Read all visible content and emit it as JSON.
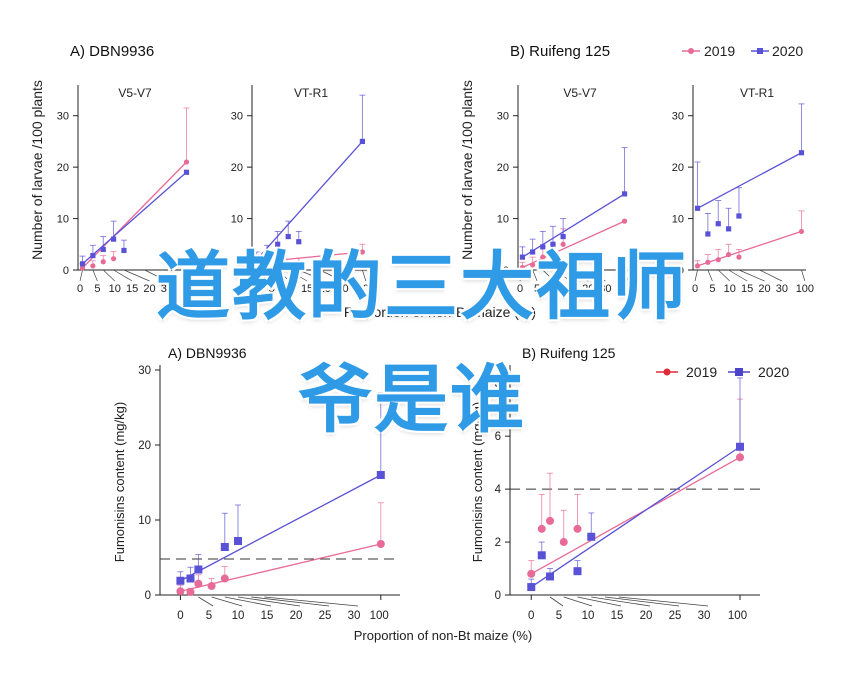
{
  "colors": {
    "2019": "#e86a97",
    "2020": "#5a52d6",
    "overlay": "#2f9ae6"
  },
  "overlay_text": {
    "line1": "道教的三大祖师",
    "line2": "爷是谁"
  },
  "legend": {
    "label_2019": "2019",
    "label_2020": "2020"
  },
  "top_figure": {
    "panel_a_title": "A)  DBN9936",
    "panel_b_title": "B)  Ruifeng 125",
    "ylabel": "Number of larvae /100 plants",
    "xlabel": "Proportion of non-Bt maize (%)",
    "chart_title_v5": "V5-V7",
    "chart_title_vt": "VT-R1"
  },
  "bottom_figure": {
    "panel_a_title": "A) DBN9936",
    "panel_b_title": "B) Ruifeng 125",
    "ylabel": "Fumonisins content (mg/kg)",
    "xlabel": "Proportion of non-Bt maize (%)"
  },
  "chart_data": [
    {
      "type": "scatter",
      "id": "top-a-v5",
      "title": "V5-V7",
      "xlabel": "",
      "ylabel": "Number of larvae /100 plants",
      "x_ticks": [
        "0",
        "5",
        "10",
        "15",
        "20",
        "30",
        "100"
      ],
      "y_ticks": [
        "0",
        "10",
        "20",
        "30"
      ],
      "ylim": [
        0,
        35
      ],
      "series": [
        {
          "name": "2019",
          "fit": "line",
          "points": [
            {
              "x": "0",
              "y": 0.4,
              "err": 0.8
            },
            {
              "x": "5",
              "y": 0.8,
              "err": 1.0
            },
            {
              "x": "10",
              "y": 1.6,
              "err": 1.2
            },
            {
              "x": "15",
              "y": 2.2,
              "err": 1.4
            },
            {
              "x": "100",
              "y": 21.0,
              "err": 10.5
            }
          ]
        },
        {
          "name": "2020",
          "fit": "line",
          "points": [
            {
              "x": "0",
              "y": 1.2,
              "err": 1.5
            },
            {
              "x": "5",
              "y": 2.8,
              "err": 2.0
            },
            {
              "x": "10",
              "y": 4.0,
              "err": 2.5
            },
            {
              "x": "15",
              "y": 6.0,
              "err": 3.5
            },
            {
              "x": "20",
              "y": 3.8,
              "err": 2.0
            },
            {
              "x": "100",
              "y": 19.0,
              "err": 0
            }
          ]
        }
      ]
    },
    {
      "type": "scatter",
      "id": "top-a-vt",
      "title": "VT-R1",
      "xlabel": "Proportion of non-Bt maize (%)",
      "ylabel": "",
      "x_ticks": [
        "0",
        "5",
        "10",
        "15",
        "20",
        "30",
        "100"
      ],
      "y_ticks": [
        "0",
        "10",
        "20",
        "30"
      ],
      "ylim": [
        0,
        35
      ],
      "series": [
        {
          "name": "2019",
          "fit": "line",
          "points": [
            {
              "x": "0",
              "y": 1.5,
              "err": 1.5
            },
            {
              "x": "5",
              "y": 2.0,
              "err": 1.2
            },
            {
              "x": "10",
              "y": 1.5,
              "err": 1.0
            },
            {
              "x": "15",
              "y": 1.0,
              "err": 0.8
            },
            {
              "x": "20",
              "y": 1.5,
              "err": 0.8
            },
            {
              "x": "100",
              "y": 3.5,
              "err": 1.5
            }
          ]
        },
        {
          "name": "2020",
          "fit": "line",
          "points": [
            {
              "x": "0",
              "y": 2.0,
              "err": 1.5
            },
            {
              "x": "5",
              "y": 3.0,
              "err": 1.8
            },
            {
              "x": "10",
              "y": 5.0,
              "err": 2.5
            },
            {
              "x": "15",
              "y": 6.5,
              "err": 3.0
            },
            {
              "x": "20",
              "y": 5.5,
              "err": 2.0
            },
            {
              "x": "100",
              "y": 25.0,
              "err": 9.0
            }
          ]
        }
      ]
    },
    {
      "type": "scatter",
      "id": "top-b-v5",
      "title": "V5-V7",
      "xlabel": "",
      "ylabel": "Number of larvae /100 plants",
      "x_ticks": [
        "0",
        "5",
        "10",
        "15",
        "20",
        "30",
        "100"
      ],
      "y_ticks": [
        "0",
        "10",
        "20",
        "30"
      ],
      "ylim": [
        0,
        35
      ],
      "series": [
        {
          "name": "2019",
          "fit": "line",
          "points": [
            {
              "x": "0",
              "y": 0.5,
              "err": 1.0
            },
            {
              "x": "5",
              "y": 1.0,
              "err": 1.5
            },
            {
              "x": "10",
              "y": 2.5,
              "err": 2.0
            },
            {
              "x": "15",
              "y": 3.0,
              "err": 2.0
            },
            {
              "x": "20",
              "y": 5.0,
              "err": 3.0
            },
            {
              "x": "100",
              "y": 9.5,
              "err": 0
            }
          ]
        },
        {
          "name": "2020",
          "fit": "line",
          "points": [
            {
              "x": "0",
              "y": 2.5,
              "err": 2.0
            },
            {
              "x": "5",
              "y": 3.5,
              "err": 2.5
            },
            {
              "x": "10",
              "y": 4.5,
              "err": 3.0
            },
            {
              "x": "15",
              "y": 5.0,
              "err": 3.5
            },
            {
              "x": "20",
              "y": 6.5,
              "err": 3.5
            },
            {
              "x": "100",
              "y": 14.8,
              "err": 9.0
            }
          ]
        }
      ]
    },
    {
      "type": "scatter",
      "id": "top-b-vt",
      "title": "VT-R1",
      "xlabel": "",
      "ylabel": "",
      "x_ticks": [
        "0",
        "5",
        "10",
        "15",
        "20",
        "30",
        "100"
      ],
      "y_ticks": [
        "0",
        "10",
        "20",
        "30"
      ],
      "ylim": [
        0,
        35
      ],
      "series": [
        {
          "name": "2019",
          "fit": "line",
          "points": [
            {
              "x": "0",
              "y": 0.8,
              "err": 1.0
            },
            {
              "x": "5",
              "y": 1.5,
              "err": 1.5
            },
            {
              "x": "10",
              "y": 2.0,
              "err": 2.0
            },
            {
              "x": "15",
              "y": 3.0,
              "err": 2.0
            },
            {
              "x": "20",
              "y": 2.5,
              "err": 1.5
            },
            {
              "x": "100",
              "y": 7.5,
              "err": 4.0
            }
          ]
        },
        {
          "name": "2020",
          "fit": "line",
          "points": [
            {
              "x": "0",
              "y": 12.0,
              "err": 9.0
            },
            {
              "x": "5",
              "y": 7.0,
              "err": 4.0
            },
            {
              "x": "10",
              "y": 9.0,
              "err": 4.5
            },
            {
              "x": "15",
              "y": 8.0,
              "err": 4.0
            },
            {
              "x": "20",
              "y": 10.5,
              "err": 5.5
            },
            {
              "x": "100",
              "y": 22.8,
              "err": 9.5
            }
          ]
        }
      ]
    },
    {
      "type": "scatter",
      "id": "bottom-a",
      "title": "A) DBN9936",
      "xlabel": "Proportion of non-Bt maize (%)",
      "ylabel": "Fumonisins content (mg/kg)",
      "x_ticks": [
        "0",
        "5",
        "10",
        "15",
        "20",
        "25",
        "30",
        "100"
      ],
      "y_ticks": [
        "0",
        "10",
        "20",
        "30"
      ],
      "ylim": [
        0,
        30
      ],
      "reference_line": 4.8,
      "series": [
        {
          "name": "2019",
          "fit": "line",
          "points": [
            {
              "x": "0",
              "y": 0.5,
              "err": 0.8
            },
            {
              "x": "2",
              "y": 0.4,
              "err": 0.5
            },
            {
              "x": "5",
              "y": 1.5,
              "err": 1.2
            },
            {
              "x": "10",
              "y": 1.2,
              "err": 1.0
            },
            {
              "x": "15",
              "y": 2.2,
              "err": 1.6
            },
            {
              "x": "100",
              "y": 6.8,
              "err": 5.5
            }
          ]
        },
        {
          "name": "2020",
          "fit": "line",
          "points": [
            {
              "x": "0",
              "y": 1.9,
              "err": 1.2
            },
            {
              "x": "2",
              "y": 2.2,
              "err": 1.5
            },
            {
              "x": "5",
              "y": 3.4,
              "err": 2.0
            },
            {
              "x": "15",
              "y": 6.4,
              "err": 4.5
            },
            {
              "x": "20",
              "y": 7.2,
              "err": 4.8
            },
            {
              "x": "100",
              "y": 16.0,
              "err": 11.0
            }
          ]
        }
      ]
    },
    {
      "type": "scatter",
      "id": "bottom-b",
      "title": "B) Ruifeng 125",
      "xlabel": "Proportion of non-Bt maize (%)",
      "ylabel": "Fumonisins content (mg/kg)",
      "x_ticks": [
        "0",
        "5",
        "10",
        "15",
        "20",
        "25",
        "30",
        "100"
      ],
      "y_ticks": [
        "0",
        "2",
        "4",
        "6",
        "8"
      ],
      "ylim": [
        0,
        8.5
      ],
      "reference_line": 4.0,
      "series": [
        {
          "name": "2019",
          "fit": "line",
          "points": [
            {
              "x": "0",
              "y": 0.8,
              "err": 0.5
            },
            {
              "x": "2",
              "y": 2.5,
              "err": 1.3
            },
            {
              "x": "5",
              "y": 2.8,
              "err": 1.8
            },
            {
              "x": "10",
              "y": 2.0,
              "err": 1.2
            },
            {
              "x": "15",
              "y": 2.5,
              "err": 1.3
            },
            {
              "x": "100",
              "y": 5.2,
              "err": 2.2
            }
          ]
        },
        {
          "name": "2020",
          "fit": "line",
          "points": [
            {
              "x": "0",
              "y": 0.3,
              "err": 0.3
            },
            {
              "x": "2",
              "y": 1.5,
              "err": 0.5
            },
            {
              "x": "5",
              "y": 0.7,
              "err": 0.3
            },
            {
              "x": "15",
              "y": 0.9,
              "err": 0.4
            },
            {
              "x": "20",
              "y": 2.2,
              "err": 0.9
            },
            {
              "x": "100",
              "y": 5.6,
              "err": 2.6
            }
          ]
        }
      ]
    }
  ]
}
